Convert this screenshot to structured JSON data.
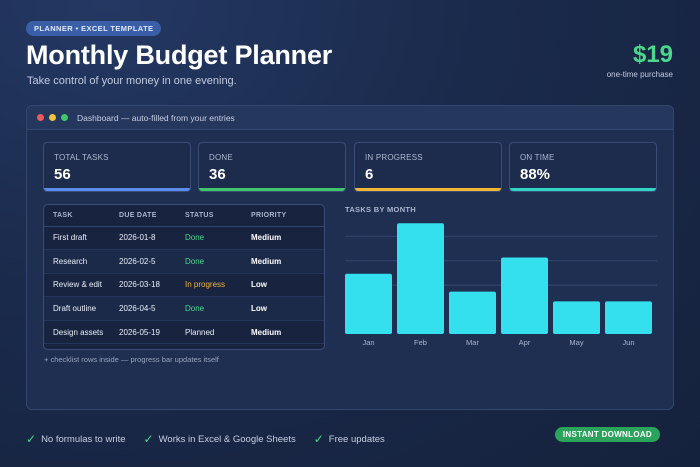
{
  "header": {
    "tag": "PLANNER • EXCEL TEMPLATE",
    "title": "Monthly Budget Planner",
    "subtitle": "Take control of your money in one evening.",
    "price": "$19",
    "price_note": "one-time purchase"
  },
  "window": {
    "title": "Dashboard — auto-filled from your entries"
  },
  "stats": [
    {
      "label": "TOTAL TASKS",
      "value": "56",
      "color": "#5b8def"
    },
    {
      "label": "DONE",
      "value": "36",
      "color": "#3fc86a"
    },
    {
      "label": "IN PROGRESS",
      "value": "6",
      "color": "#f1b632"
    },
    {
      "label": "ON TIME",
      "value": "88%",
      "color": "#2fd6c3"
    }
  ],
  "table": {
    "headers": [
      "TASK",
      "DUE DATE",
      "STATUS",
      "PRIORITY"
    ],
    "rows": [
      {
        "task": "First draft",
        "due": "2026-01-8",
        "status": "Done",
        "priority": "Medium"
      },
      {
        "task": "Research",
        "due": "2026-02-5",
        "status": "Done",
        "priority": "Medium"
      },
      {
        "task": "Review & edit",
        "due": "2026-03-18",
        "status": "In progress",
        "priority": "Low"
      },
      {
        "task": "Draft outline",
        "due": "2026-04-5",
        "status": "Done",
        "priority": "Low"
      },
      {
        "task": "Design assets",
        "due": "2026-05-19",
        "status": "Planned",
        "priority": "Medium"
      }
    ],
    "note": "+ checklist rows inside — progress bar updates itself"
  },
  "chart_title": "TASKS BY MONTH",
  "chart_data": {
    "type": "bar",
    "categories": [
      "Jan",
      "Feb",
      "Mar",
      "Apr",
      "May",
      "Jun"
    ],
    "values": [
      37,
      68,
      26,
      47,
      20,
      20
    ],
    "ylim": [
      0,
      70
    ],
    "grid": true,
    "bar_color": "#35e0ee"
  },
  "features": [
    {
      "icon": "check-icon",
      "label": "No formulas to write"
    },
    {
      "icon": "check-icon",
      "label": "Works in Excel & Google Sheets"
    },
    {
      "icon": "check-icon",
      "label": "Free updates"
    }
  ],
  "cta": {
    "label": "INSTANT DOWNLOAD",
    "color": "#2aa35b"
  }
}
